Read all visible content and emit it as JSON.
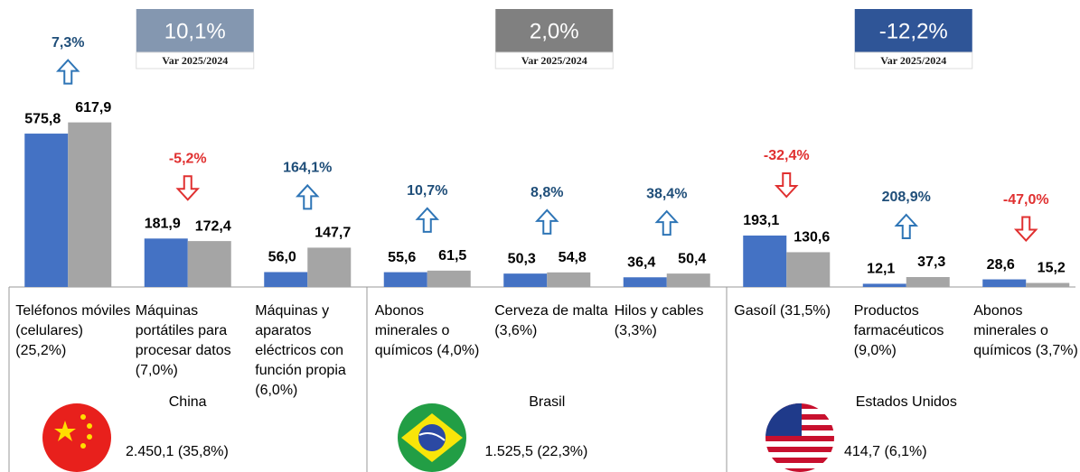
{
  "chart_data": {
    "type": "bar",
    "colors": [
      "#4472c4",
      "#a5a5a5"
    ],
    "up_color": "#2e75b6",
    "down_color": "#e03030",
    "ylim": [
      0,
      620
    ],
    "groups": [
      {
        "name": "China",
        "total": "2.450,1 (35,8%)",
        "change": 10.1,
        "change_label": "10,1%",
        "caption": "Var 2025/2024",
        "color": "#8497b0",
        "categories": [
          "Teléfonos móviles (celulares) (25,2%)",
          "Máquinas portátiles para procesar datos (7,0%)",
          "Máquinas y aparatos eléctricos con función propia (6,0%)"
        ],
        "series": [
          {
            "values": [
              575.8,
              181.9,
              56.0
            ],
            "value_labels": [
              "575,8",
              "181,9",
              "56,0"
            ]
          },
          {
            "values": [
              617.9,
              172.4,
              147.7
            ],
            "value_labels": [
              "617,9",
              "172,4",
              "147,7"
            ]
          }
        ],
        "changes": {
          "values": [
            7.3,
            -5.2,
            164.1
          ],
          "value_labels": [
            "7,3%",
            "-5,2%",
            "164,1%"
          ]
        }
      },
      {
        "name": "Brasil",
        "total": "1.525,5 (22,3%)",
        "change": 2.0,
        "change_label": "2,0%",
        "caption": "Var 2025/2024",
        "color": "#808080",
        "categories": [
          "Abonos minerales o químicos (4,0%)",
          "Cerveza de malta (3,6%)",
          "Hilos y cables (3,3%)"
        ],
        "series": [
          {
            "values": [
              55.6,
              50.3,
              36.4
            ],
            "value_labels": [
              "55,6",
              "50,3",
              "36,4"
            ]
          },
          {
            "values": [
              61.5,
              54.8,
              50.4
            ],
            "value_labels": [
              "61,5",
              "54,8",
              "50,4"
            ]
          }
        ],
        "changes": {
          "values": [
            10.7,
            8.8,
            38.4
          ],
          "value_labels": [
            "10,7%",
            "8,8%",
            "38,4%"
          ]
        }
      },
      {
        "name": "Estados Unidos",
        "total": "414,7 (6,1%)",
        "change": -12.2,
        "change_label": "-12,2%",
        "caption": "Var 2025/2024",
        "color": "#2f5597",
        "categories": [
          "Gasoíl (31,5%)",
          "Productos farmacéuticos (9,0%)",
          "Abonos minerales o químicos (3,7%)"
        ],
        "series": [
          {
            "values": [
              193.1,
              12.1,
              28.6
            ],
            "value_labels": [
              "193,1",
              "12,1",
              "28,6"
            ]
          },
          {
            "values": [
              130.6,
              37.3,
              15.2
            ],
            "value_labels": [
              "130,6",
              "37,3",
              "15,2"
            ]
          }
        ],
        "changes": {
          "values": [
            -32.4,
            208.9,
            -47.0
          ],
          "value_labels": [
            "-32,4%",
            "208,9%",
            "-47,0%"
          ]
        }
      }
    ]
  }
}
